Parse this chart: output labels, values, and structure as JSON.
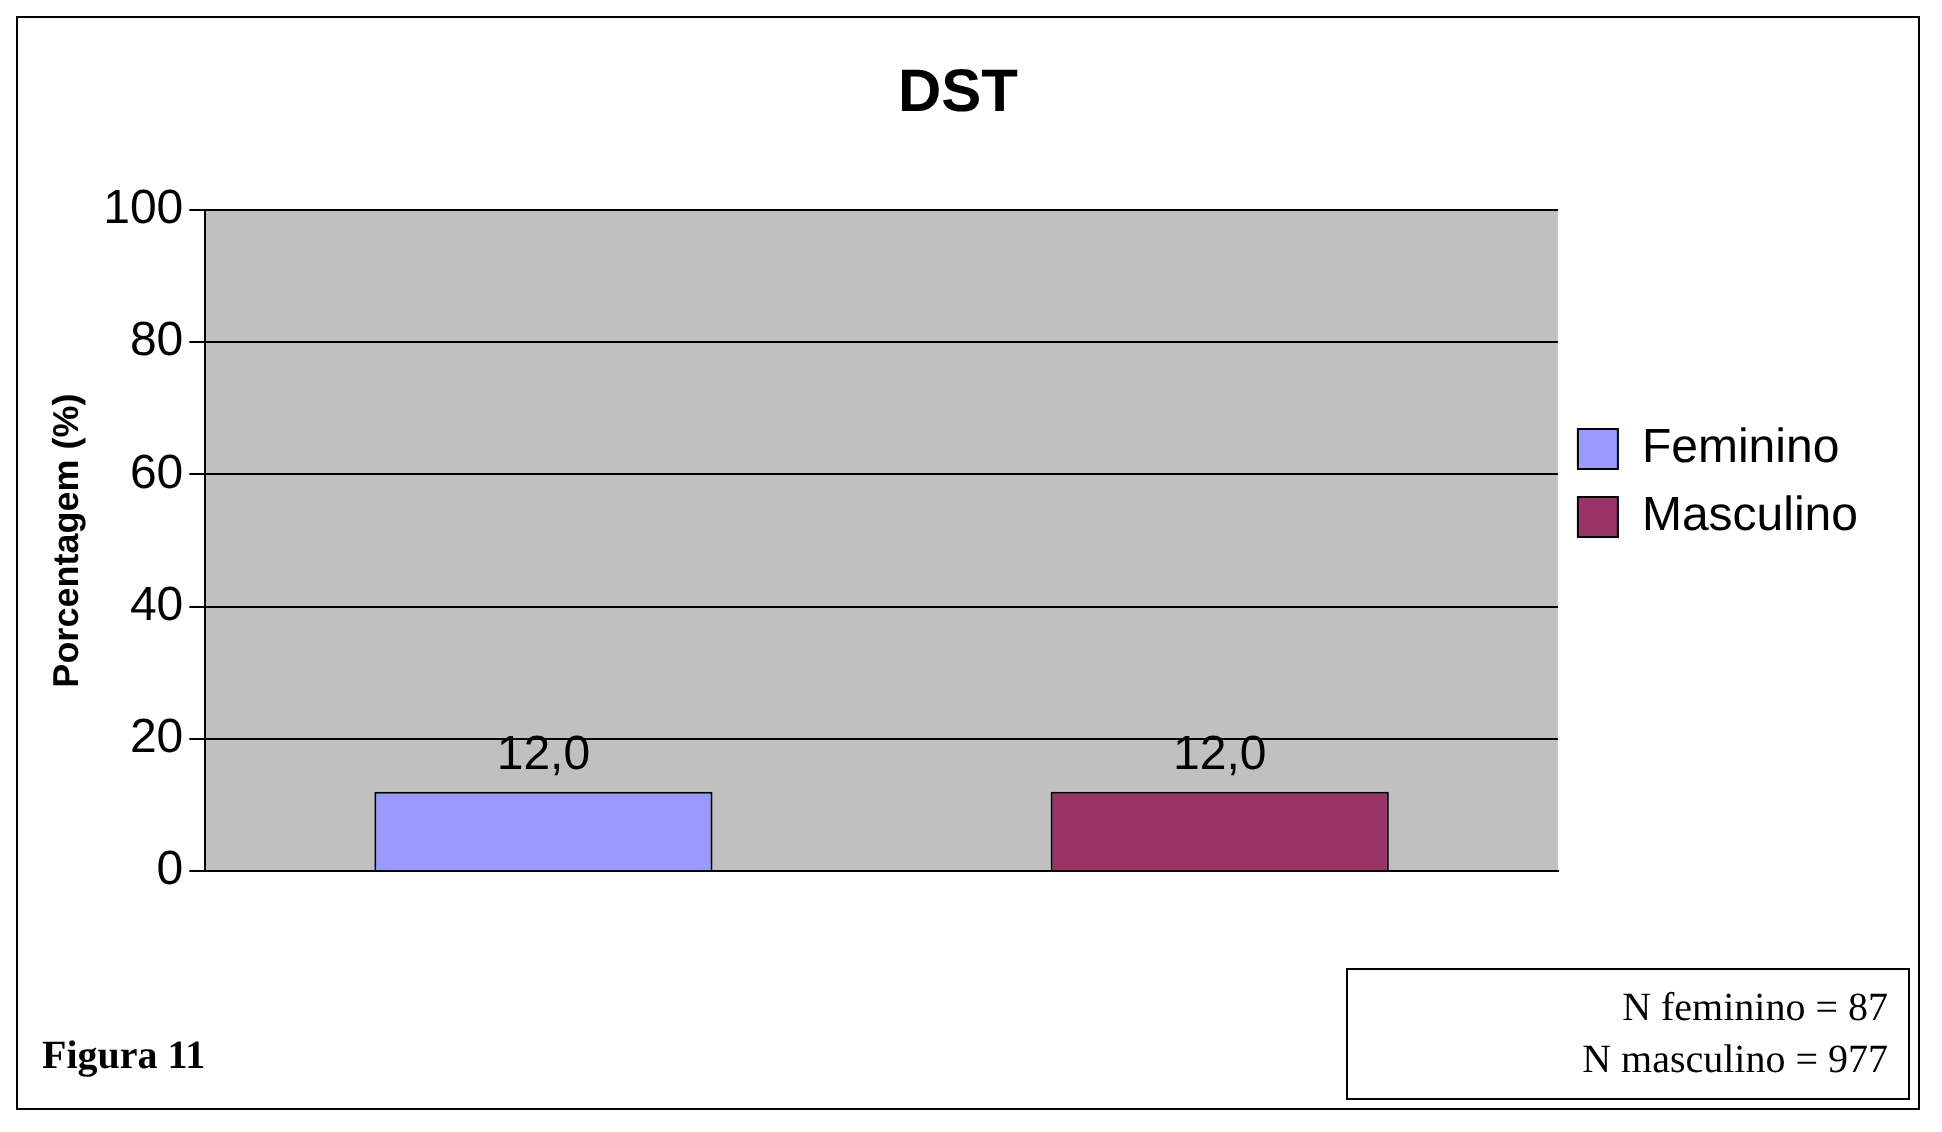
{
  "chart_data": {
    "type": "bar",
    "title": "DST",
    "ylabel": "Porcentagem (%)",
    "categories": [
      null
    ],
    "series": [
      {
        "name": "Feminino",
        "color": "#9999ff",
        "values": [
          12.0
        ],
        "value_labels": [
          "12,0"
        ]
      },
      {
        "name": "Masculino",
        "color": "#993366",
        "values": [
          12.0
        ],
        "value_labels": [
          "12,0"
        ]
      }
    ],
    "ylim": [
      0,
      100
    ],
    "yticks": [
      0,
      20,
      40,
      60,
      80,
      100
    ],
    "grid": "y",
    "legend": "right",
    "annotations": [
      "Figura 11",
      "N feminino = 87",
      "N masculino = 977"
    ]
  }
}
